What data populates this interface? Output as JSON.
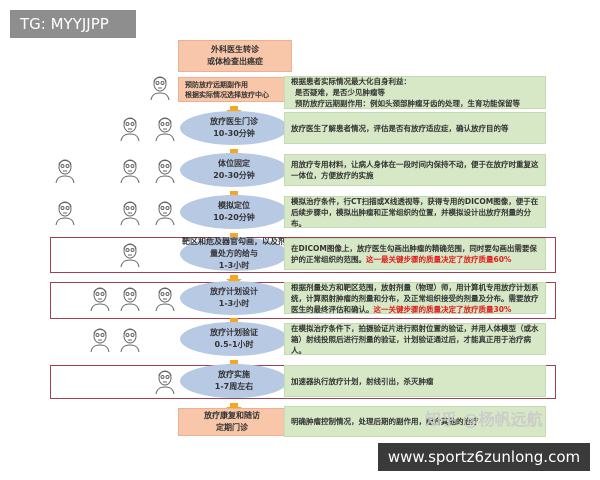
{
  "tag": "TG: MYYJJPP",
  "site": "www.sportz6zunlong.com",
  "watermark": "知乎 @杨帆远航",
  "steps": [
    {
      "title": "外科医生转诊",
      "sub": "或体检查出癌症"
    },
    {
      "bullets": [
        "预防放疗远期副作用",
        "根据实际情况选择放疗中心"
      ],
      "desc_title": "根据患者实际情况最大化自身利益：",
      "desc_bullets": [
        "是否疑难，是否少见肿瘤等",
        "预防放疗远期副作用：例如头颈部肿瘤牙齿的处理，生育功能保留等"
      ]
    },
    {
      "title": "放疗医生门诊",
      "sub": "10-30分钟",
      "desc": "放疗医生了解患者情况，评估是否有放疗适应症，确认放疗目的等"
    },
    {
      "title": "体位固定",
      "sub": "20-30分钟",
      "desc": "用放疗专用材料，让病人身体在一段时间内保持不动，便于在放疗时重复这一体位，方便放疗的实施"
    },
    {
      "title": "模拟定位",
      "sub": "10-20分钟",
      "desc": "模拟治疗条件，行CT扫描或X线透视等，获得专用的DICOM图像，便于在后续步骤中，模拟出肿瘤和正常组织的位置，并模拟设计出放疗剂量的分布。"
    },
    {
      "title": "靶区和危及器官勾画，以及剂量处方的给与",
      "sub": "1-3小时",
      "desc": "在DICOM图像上，放疗医生勾画出肿瘤的精确范围，同时要勾画出需要保护的正常组织的范围。",
      "desc_red": "这一最关键步骤的质量决定了放疗质量60%"
    },
    {
      "title": "放疗计划设计",
      "sub": "1-3小时",
      "desc": "根据剂量处方和靶区范围，放射剂量（物理）师，用计算机专用放疗计划系统，计算照射肿瘤的剂量和分布，及正常组织接受的剂量及分布。需要放疗医生的最终评估和确认。",
      "desc_red": "这一关键步骤的质量决定了放疗质量30%"
    },
    {
      "title": "放疗计划验证",
      "sub": "0.5-1小时",
      "desc": "在模拟治疗条件下，拍摄验证片进行照射位置的验证，并用人体模型（或水箱）射线投照后进行剂量的验证，计划验证通过后，才能真正用于治疗病人。"
    },
    {
      "title": "放疗实施",
      "sub": "1-7周左右",
      "desc": "加速器执行放疗计划，射线引出，杀灭肿瘤"
    },
    {
      "title": "放疗康复和随访",
      "sub": "定期门诊",
      "desc": "明确肿瘤控制情况，处理后期的副作用，配合其他的治疗"
    }
  ],
  "colors": {
    "orange_box": "#f8c6a8",
    "ellipse": "#b8c9e4",
    "green_box": "#d7e8c6",
    "arrow": "#f5a623",
    "highlight": "#a04050",
    "red_text": "#e02020"
  }
}
